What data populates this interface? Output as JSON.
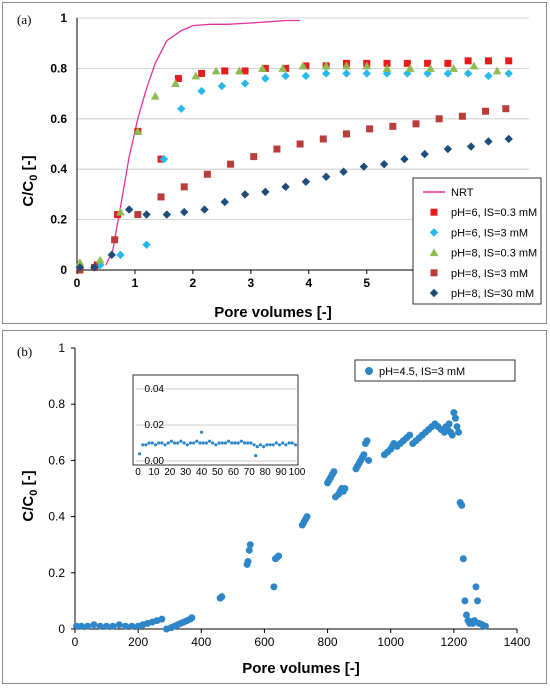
{
  "chart_data": [
    {
      "type": "scatter",
      "panel_label": "(a)",
      "xlabel": "Pore volumes [-]",
      "ylabel": "C/C",
      "ylabel_sub": "0",
      "ylabel_suffix": " [-]",
      "xlim": [
        0,
        7.8
      ],
      "ylim": [
        0,
        1
      ],
      "xticks": [
        "0",
        "1",
        "2",
        "3",
        "4",
        "5"
      ],
      "xtick_values": [
        0,
        1,
        2,
        3,
        4,
        5
      ],
      "yticks": [
        "0",
        "0.2",
        "0.4",
        "0.6",
        "0.8",
        "1"
      ],
      "ytick_values": [
        0,
        0.2,
        0.4,
        0.6,
        0.8,
        1
      ],
      "grid": true,
      "legend_position": "bottom-right",
      "series": [
        {
          "name": "NRT",
          "kind": "line",
          "color": "#e0359a",
          "x": [
            0.5,
            0.62,
            0.75,
            0.9,
            1.05,
            1.2,
            1.35,
            1.55,
            1.8,
            2.0,
            2.3,
            2.6,
            3.0,
            3.3,
            3.6,
            3.85
          ],
          "y": [
            0.02,
            0.08,
            0.25,
            0.45,
            0.6,
            0.72,
            0.82,
            0.91,
            0.95,
            0.97,
            0.975,
            0.975,
            0.98,
            0.985,
            0.99,
            0.99
          ]
        },
        {
          "name": "pH=6, IS=0.3 mM",
          "kind": "square",
          "color": "#e81c1c",
          "x": [
            0.05,
            0.35,
            0.7,
            1.05,
            1.45,
            1.75,
            2.15,
            2.55,
            2.9,
            3.25,
            3.6,
            3.95,
            4.3,
            4.65,
            5.0,
            5.35,
            5.7,
            6.05,
            6.4,
            6.75,
            7.1,
            7.45
          ],
          "y": [
            0.01,
            0.02,
            0.22,
            0.55,
            0.44,
            0.76,
            0.78,
            0.79,
            0.79,
            0.8,
            0.8,
            0.81,
            0.81,
            0.82,
            0.82,
            0.82,
            0.82,
            0.82,
            0.82,
            0.83,
            0.83,
            0.83
          ]
        },
        {
          "name": "pH=6, IS=3 mM",
          "kind": "diamond",
          "color": "#29b8ee",
          "x": [
            0.05,
            0.4,
            0.75,
            1.2,
            1.5,
            1.8,
            2.15,
            2.5,
            2.9,
            3.25,
            3.6,
            3.95,
            4.3,
            4.65,
            5.0,
            5.35,
            5.7,
            6.05,
            6.4,
            6.75,
            7.1,
            7.45
          ],
          "y": [
            0.01,
            0.02,
            0.06,
            0.1,
            0.44,
            0.64,
            0.71,
            0.73,
            0.74,
            0.76,
            0.77,
            0.77,
            0.78,
            0.78,
            0.78,
            0.78,
            0.78,
            0.78,
            0.78,
            0.78,
            0.77,
            0.78
          ]
        },
        {
          "name": "pH=8, IS=0.3 mM",
          "kind": "triangle",
          "color": "#8fbc52",
          "x": [
            0.05,
            0.4,
            0.75,
            1.05,
            1.35,
            1.7,
            2.05,
            2.4,
            2.8,
            3.2,
            3.55,
            3.9,
            4.3,
            4.65,
            5.0,
            5.35,
            5.75,
            6.1,
            6.5,
            6.85,
            7.25
          ],
          "y": [
            0.03,
            0.04,
            0.23,
            0.55,
            0.69,
            0.74,
            0.77,
            0.79,
            0.79,
            0.8,
            0.8,
            0.81,
            0.81,
            0.81,
            0.81,
            0.8,
            0.8,
            0.8,
            0.8,
            0.81,
            0.79
          ]
        },
        {
          "name": "pH=8, IS=3 mM",
          "kind": "square",
          "color": "#bb3d3a",
          "x": [
            0.05,
            0.3,
            0.65,
            1.05,
            1.45,
            1.85,
            2.25,
            2.65,
            3.05,
            3.45,
            3.85,
            4.25,
            4.65,
            5.05,
            5.45,
            5.85,
            6.25,
            6.65,
            7.05,
            7.4
          ],
          "y": [
            0.0,
            0.01,
            0.12,
            0.22,
            0.29,
            0.33,
            0.38,
            0.42,
            0.45,
            0.48,
            0.5,
            0.52,
            0.54,
            0.56,
            0.57,
            0.58,
            0.6,
            0.61,
            0.63,
            0.64
          ]
        },
        {
          "name": "pH=8, IS=30 mM",
          "kind": "diamond",
          "color": "#1e4d7a",
          "x": [
            0.05,
            0.3,
            0.6,
            0.9,
            1.2,
            1.55,
            1.85,
            2.2,
            2.55,
            2.9,
            3.25,
            3.6,
            3.95,
            4.3,
            4.6,
            4.95,
            5.3,
            5.65,
            6.0,
            6.4,
            6.8,
            7.1,
            7.45
          ],
          "y": [
            0.01,
            0.01,
            0.06,
            0.24,
            0.22,
            0.22,
            0.23,
            0.24,
            0.27,
            0.3,
            0.31,
            0.33,
            0.35,
            0.37,
            0.39,
            0.41,
            0.42,
            0.44,
            0.46,
            0.48,
            0.49,
            0.51,
            0.52
          ]
        }
      ]
    },
    {
      "type": "scatter",
      "panel_label": "(b)",
      "xlabel": "Pore volumes [-]",
      "ylabel": "C/C",
      "ylabel_sub": "0",
      "ylabel_suffix": " [-]",
      "xlim": [
        0,
        1400
      ],
      "ylim": [
        0,
        1
      ],
      "xticks": [
        "0",
        "200",
        "400",
        "600",
        "800",
        "1000",
        "1200",
        "1400"
      ],
      "xtick_values": [
        0,
        200,
        400,
        600,
        800,
        1000,
        1200,
        1400
      ],
      "yticks": [
        "0",
        "0.2",
        "0.4",
        "0.6",
        "0.8",
        "1"
      ],
      "ytick_values": [
        0,
        0.2,
        0.4,
        0.6,
        0.8,
        1
      ],
      "grid": false,
      "legend_position": "top-right",
      "series": [
        {
          "name": "pH=4.5, IS=3 mM",
          "kind": "circle",
          "color": "#2e86c8",
          "x": [
            5,
            20,
            40,
            60,
            80,
            100,
            120,
            140,
            160,
            180,
            200,
            215,
            230,
            245,
            260,
            275,
            290,
            305,
            315,
            325,
            335,
            345,
            355,
            365,
            370,
            460,
            465,
            545,
            548,
            552,
            555,
            630,
            635,
            640,
            645,
            720,
            725,
            730,
            735,
            800,
            805,
            810,
            815,
            820,
            825,
            835,
            840,
            845,
            850,
            855,
            890,
            895,
            900,
            905,
            910,
            915,
            920,
            925,
            930,
            980,
            990,
            1000,
            1005,
            1010,
            1020,
            1030,
            1040,
            1050,
            1060,
            1070,
            1080,
            1090,
            1100,
            1110,
            1120,
            1130,
            1140,
            1150,
            1160,
            1170,
            1175,
            1180,
            1185,
            1190,
            1195,
            1200,
            1205,
            1210,
            1215,
            1220,
            1225,
            1230,
            1235,
            1240,
            1245,
            1250,
            1255,
            1260,
            1265,
            1270,
            1275,
            1280,
            1290,
            1300
          ],
          "y": [
            0.01,
            0.01,
            0.01,
            0.015,
            0.01,
            0.01,
            0.01,
            0.015,
            0.01,
            0.01,
            0.01,
            0.015,
            0.02,
            0.025,
            0.03,
            0.035,
            0.0,
            0.005,
            0.01,
            0.015,
            0.02,
            0.025,
            0.03,
            0.035,
            0.04,
            0.11,
            0.115,
            0.23,
            0.24,
            0.28,
            0.3,
            0.15,
            0.25,
            0.255,
            0.26,
            0.37,
            0.38,
            0.39,
            0.4,
            0.52,
            0.53,
            0.54,
            0.55,
            0.56,
            0.47,
            0.48,
            0.49,
            0.5,
            0.49,
            0.5,
            0.57,
            0.58,
            0.59,
            0.6,
            0.61,
            0.62,
            0.66,
            0.67,
            0.6,
            0.62,
            0.63,
            0.64,
            0.65,
            0.66,
            0.65,
            0.66,
            0.67,
            0.68,
            0.69,
            0.66,
            0.67,
            0.68,
            0.69,
            0.7,
            0.71,
            0.72,
            0.73,
            0.72,
            0.71,
            0.7,
            0.72,
            0.71,
            0.73,
            0.7,
            0.69,
            0.77,
            0.75,
            0.72,
            0.7,
            0.45,
            0.44,
            0.25,
            0.1,
            0.05,
            0.03,
            0.02,
            0.025,
            0.02,
            0.03,
            0.15,
            0.1,
            0.02,
            0.015,
            0.01
          ]
        }
      ],
      "inset": {
        "xlim": [
          0,
          100
        ],
        "ylim": [
          0,
          0.04
        ],
        "xticks": [
          "0",
          "10",
          "20",
          "30",
          "40",
          "50",
          "60",
          "70",
          "80",
          "90",
          "100"
        ],
        "xtick_values": [
          0,
          10,
          20,
          30,
          40,
          50,
          60,
          70,
          80,
          90,
          100
        ],
        "yticks": [
          "0.00",
          "0.02",
          "0.04"
        ],
        "ytick_values": [
          0,
          0.02,
          0.04
        ],
        "x": [
          1,
          3,
          5,
          7,
          9,
          11,
          13,
          15,
          17,
          19,
          21,
          23,
          25,
          27,
          29,
          31,
          33,
          35,
          37,
          39,
          40,
          41,
          43,
          45,
          47,
          49,
          51,
          53,
          55,
          57,
          59,
          61,
          63,
          65,
          67,
          69,
          71,
          73,
          74,
          75,
          77,
          79,
          81,
          83,
          85,
          87,
          89,
          91,
          93,
          95,
          97,
          99
        ],
        "y": [
          0.004,
          0.009,
          0.009,
          0.01,
          0.01,
          0.009,
          0.01,
          0.01,
          0.009,
          0.01,
          0.011,
          0.01,
          0.01,
          0.011,
          0.01,
          0.009,
          0.01,
          0.01,
          0.011,
          0.01,
          0.016,
          0.01,
          0.01,
          0.011,
          0.01,
          0.009,
          0.01,
          0.01,
          0.01,
          0.011,
          0.01,
          0.01,
          0.01,
          0.011,
          0.01,
          0.01,
          0.01,
          0.009,
          0.003,
          0.008,
          0.009,
          0.008,
          0.009,
          0.009,
          0.009,
          0.01,
          0.009,
          0.01,
          0.009,
          0.01,
          0.01,
          0.009
        ]
      }
    }
  ]
}
